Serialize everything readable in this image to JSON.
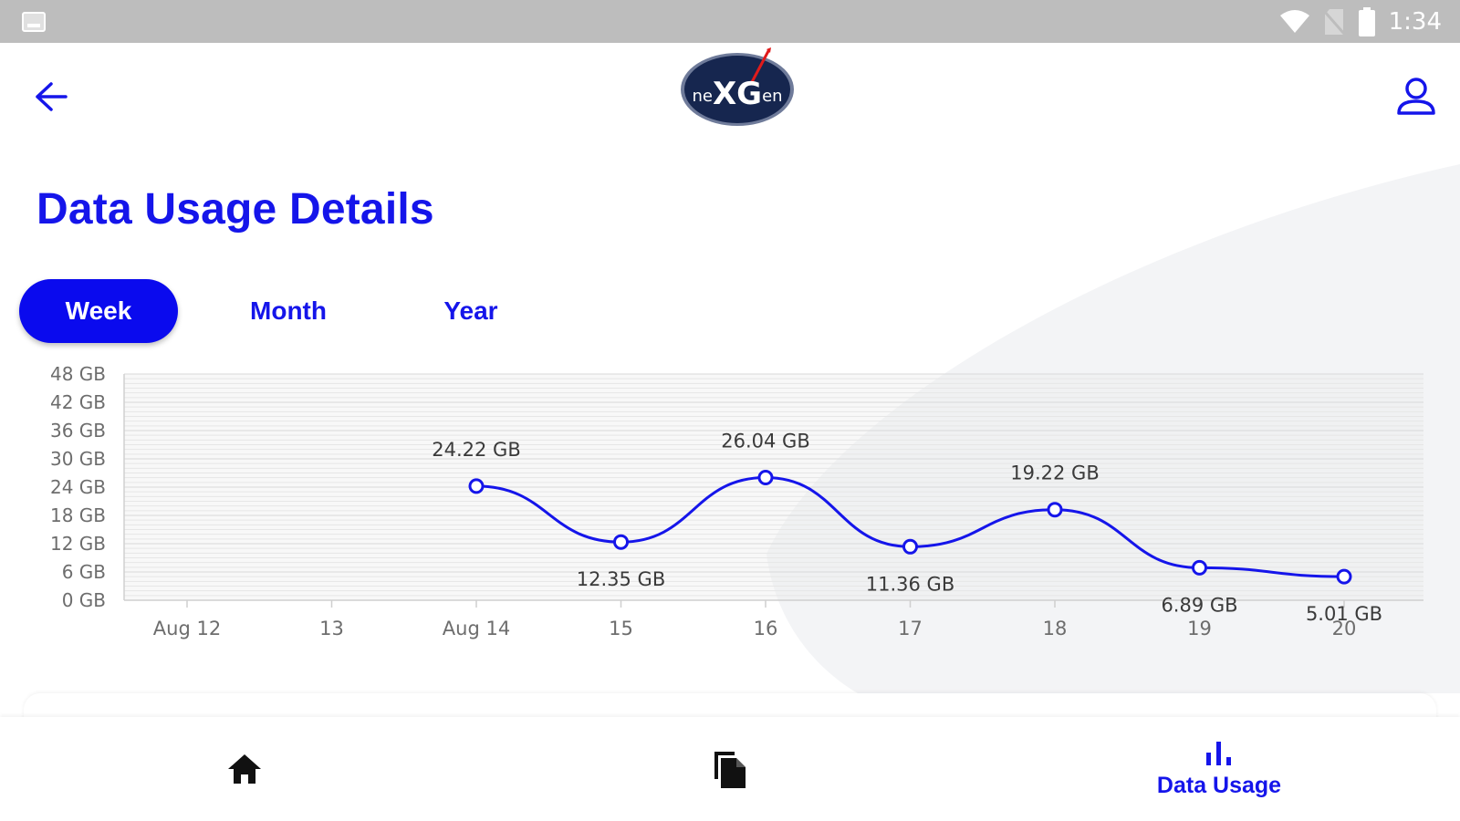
{
  "status_bar": {
    "time": "1:34",
    "icons": [
      "gallery-notification-icon",
      "wifi-icon",
      "no-sim-icon",
      "battery-icon"
    ]
  },
  "app_bar": {
    "back_icon": "arrow-left-icon",
    "logo": {
      "text_small_left": "ne",
      "text_big": "XG",
      "text_small_right": "en"
    },
    "profile_icon": "user-icon"
  },
  "page": {
    "title": "Data Usage Details",
    "tabs": [
      {
        "label": "Week",
        "active": true
      },
      {
        "label": "Month",
        "active": false
      },
      {
        "label": "Year",
        "active": false
      }
    ]
  },
  "chart_data": {
    "type": "line",
    "x": [
      "Aug 12",
      "13",
      "Aug 14",
      "15",
      "16",
      "17",
      "18",
      "19",
      "20"
    ],
    "values": [
      null,
      null,
      24.22,
      12.35,
      26.04,
      11.36,
      19.22,
      6.89,
      5.01
    ],
    "data_labels": [
      "",
      "",
      "24.22 GB",
      "12.35 GB",
      "26.04 GB",
      "11.36 GB",
      "19.22 GB",
      "6.89 GB",
      "5.01 GB"
    ],
    "y_ticks": [
      "0 GB",
      "6 GB",
      "12 GB",
      "18 GB",
      "24 GB",
      "30 GB",
      "36 GB",
      "42 GB",
      "48 GB"
    ],
    "ylim": [
      0,
      48
    ],
    "unit": "GB",
    "grid": true,
    "line_color": "#1515ea",
    "title": "",
    "xlabel": "",
    "ylabel": ""
  },
  "bottom_nav": {
    "items": [
      {
        "icon": "home-icon",
        "label": ""
      },
      {
        "icon": "documents-icon",
        "label": ""
      },
      {
        "icon": "bar-chart-icon",
        "label": "Data Usage",
        "active": true
      }
    ]
  },
  "colors": {
    "accent": "#1515ea",
    "status_bar": "#bdbdbd",
    "background_shape": "#f3f4f6"
  }
}
